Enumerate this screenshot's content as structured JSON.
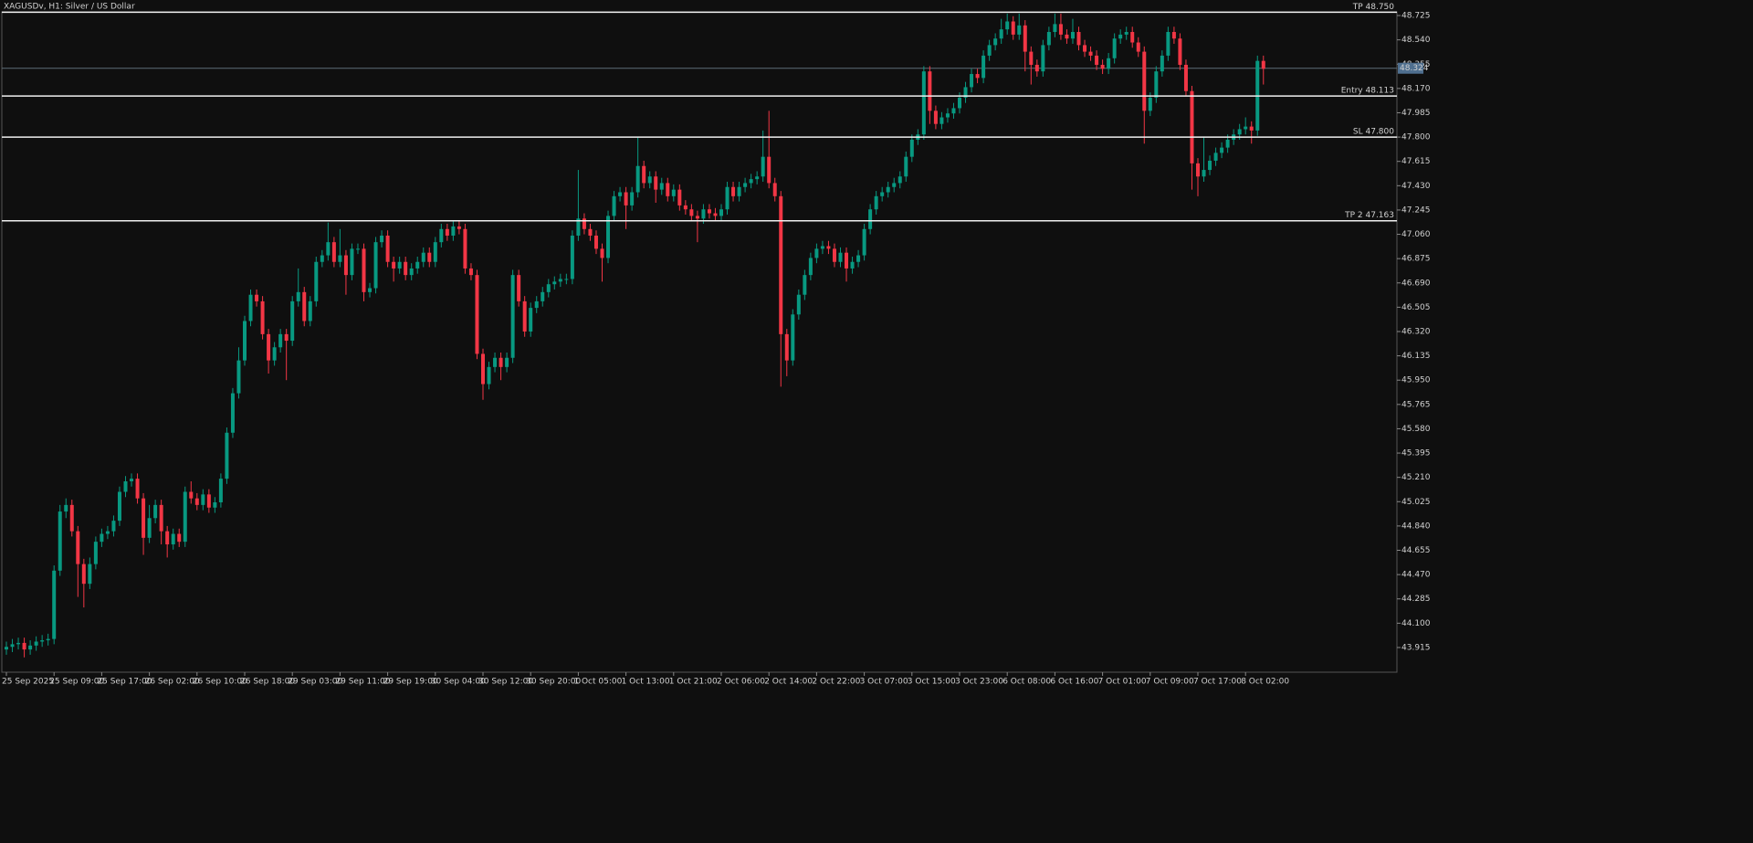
{
  "chart_data": {
    "type": "candlestick",
    "title": "XAGUSDv, H1:  Silver / US Dollar",
    "up_color": "#089981",
    "down_color": "#f23645",
    "ylim": [
      43.727,
      48.753
    ],
    "yticks": [
      48.725,
      {
        "value": 48.54,
        "label": "48.540"
      },
      48.355,
      {
        "value": 48.17,
        "label": "48.170"
      },
      47.985,
      {
        "value": 47.8,
        "label": "47.800"
      },
      47.615,
      {
        "value": 47.43,
        "label": "47.430"
      },
      47.245,
      {
        "value": 47.06,
        "label": "47.060"
      },
      46.875,
      {
        "value": 46.69,
        "label": "46.690"
      },
      46.505,
      {
        "value": 46.32,
        "label": "46.320"
      },
      46.135,
      {
        "value": 45.95,
        "label": "45.950"
      },
      45.765,
      {
        "value": 45.58,
        "label": "45.580"
      },
      45.395,
      {
        "value": 45.21,
        "label": "45.210"
      },
      45.025,
      {
        "value": 44.84,
        "label": "44.840"
      },
      44.655,
      {
        "value": 44.47,
        "label": "44.470"
      },
      44.285,
      {
        "value": 44.1,
        "label": "44.100"
      },
      43.915
    ],
    "levels": [
      {
        "value": 48.75,
        "label": "TP 48.750"
      },
      {
        "value": 48.113,
        "label": "Entry 48.113"
      },
      {
        "value": 47.8,
        "label": "SL 47.800"
      },
      {
        "value": 47.163,
        "label": "TP 2 47.163"
      }
    ],
    "current": {
      "value": 48.324,
      "label": "48.324"
    },
    "categories": [
      "25 Sep 2025",
      null,
      null,
      null,
      null,
      null,
      null,
      null,
      "25 Sep 09:00",
      null,
      null,
      null,
      null,
      null,
      null,
      null,
      "25 Sep 17:00",
      null,
      null,
      null,
      null,
      null,
      null,
      null,
      "26 Sep 02:00",
      null,
      null,
      null,
      null,
      null,
      null,
      null,
      "26 Sep 10:00",
      null,
      null,
      null,
      null,
      null,
      null,
      null,
      "26 Sep 18:00",
      null,
      null,
      null,
      null,
      null,
      null,
      null,
      "29 Sep 03:00",
      null,
      null,
      null,
      null,
      null,
      null,
      null,
      "29 Sep 11:00",
      null,
      null,
      null,
      null,
      null,
      null,
      null,
      "29 Sep 19:00",
      null,
      null,
      null,
      null,
      null,
      null,
      null,
      "30 Sep 04:00",
      null,
      null,
      null,
      null,
      null,
      null,
      null,
      "30 Sep 12:00",
      null,
      null,
      null,
      null,
      null,
      null,
      null,
      "30 Sep 20:00",
      null,
      null,
      null,
      null,
      null,
      null,
      null,
      "1 Oct 05:00",
      null,
      null,
      null,
      null,
      null,
      null,
      null,
      "1 Oct 13:00",
      null,
      null,
      null,
      null,
      null,
      null,
      null,
      "1 Oct 21:00",
      null,
      null,
      null,
      null,
      null,
      null,
      null,
      "2 Oct 06:00",
      null,
      null,
      null,
      null,
      null,
      null,
      null,
      "2 Oct 14:00",
      null,
      null,
      null,
      null,
      null,
      null,
      null,
      "2 Oct 22:00",
      null,
      null,
      null,
      null,
      null,
      null,
      null,
      "3 Oct 07:00",
      null,
      null,
      null,
      null,
      null,
      null,
      null,
      "3 Oct 15:00",
      null,
      null,
      null,
      null,
      null,
      null,
      null,
      "3 Oct 23:00",
      null,
      null,
      null,
      null,
      null,
      null,
      null,
      "6 Oct 08:00",
      null,
      null,
      null,
      null,
      null,
      null,
      null,
      "6 Oct 16:00",
      null,
      null,
      null,
      null,
      null,
      null,
      null,
      "7 Oct 01:00",
      null,
      null,
      null,
      null,
      null,
      null,
      null,
      "7 Oct 09:00",
      null,
      null,
      null,
      null,
      null,
      null,
      null,
      "7 Oct 17:00",
      null,
      null,
      null,
      null,
      null,
      null,
      null,
      "8 Oct 02:00",
      null,
      null,
      null
    ],
    "open": [
      43.9,
      43.92,
      43.94,
      43.95,
      43.9,
      43.93,
      43.96,
      43.97,
      43.98,
      44.5,
      44.95,
      45.0,
      44.8,
      44.55,
      44.4,
      44.55,
      44.72,
      44.78,
      44.8,
      44.88,
      45.1,
      45.18,
      45.2,
      45.05,
      44.75,
      44.9,
      45.0,
      44.8,
      44.7,
      44.78,
      44.72,
      45.1,
      45.05,
      45.0,
      45.08,
      44.98,
      45.02,
      45.2,
      45.55,
      45.85,
      46.1,
      46.4,
      46.6,
      46.55,
      46.3,
      46.1,
      46.2,
      46.3,
      46.25,
      46.55,
      46.62,
      46.4,
      46.55,
      46.85,
      46.9,
      47.0,
      46.85,
      46.9,
      46.75,
      46.95,
      46.95,
      46.62,
      46.65,
      47.0,
      47.05,
      46.85,
      46.8,
      46.85,
      46.75,
      46.8,
      46.85,
      46.92,
      46.85,
      47.0,
      47.1,
      47.05,
      47.12,
      47.1,
      46.8,
      46.75,
      46.15,
      45.92,
      46.05,
      46.12,
      46.05,
      46.12,
      46.75,
      46.55,
      46.32,
      46.5,
      46.55,
      46.62,
      46.68,
      46.7,
      46.72,
      46.72,
      47.05,
      47.18,
      47.1,
      47.05,
      46.95,
      46.88,
      47.2,
      47.35,
      47.38,
      47.28,
      47.38,
      47.58,
      47.45,
      47.5,
      47.4,
      47.45,
      47.35,
      47.4,
      47.28,
      47.25,
      47.2,
      47.18,
      47.25,
      47.22,
      47.2,
      47.25,
      47.42,
      47.35,
      47.42,
      47.45,
      47.48,
      47.5,
      47.65,
      47.45,
      47.35,
      46.3,
      46.1,
      46.45,
      46.6,
      46.75,
      46.88,
      46.95,
      46.97,
      46.95,
      46.85,
      46.92,
      46.8,
      46.85,
      46.9,
      47.1,
      47.25,
      47.35,
      47.38,
      47.42,
      47.45,
      47.5,
      47.65,
      47.78,
      47.82,
      48.3,
      48.0,
      47.9,
      47.95,
      47.98,
      48.02,
      48.1,
      48.18,
      48.28,
      48.25,
      48.42,
      48.5,
      48.55,
      48.62,
      48.68,
      48.58,
      48.65,
      48.45,
      48.35,
      48.3,
      48.5,
      48.6,
      48.66,
      48.58,
      48.55,
      48.6,
      48.5,
      48.45,
      48.42,
      48.35,
      48.32,
      48.4,
      48.55,
      48.58,
      48.6,
      48.52,
      48.45,
      48.0,
      48.1,
      48.3,
      48.42,
      48.6,
      48.55,
      48.35,
      48.15,
      47.6,
      47.5,
      47.55,
      47.62,
      47.68,
      47.72,
      47.78,
      47.82,
      47.86,
      47.88,
      47.85,
      48.38
    ],
    "high": [
      43.96,
      43.98,
      43.99,
      43.99,
      43.97,
      44.0,
      44.01,
      44.02,
      44.54,
      45.0,
      45.05,
      45.04,
      44.84,
      44.59,
      44.6,
      44.76,
      44.82,
      44.84,
      44.92,
      45.14,
      45.22,
      45.24,
      45.24,
      45.09,
      45.0,
      45.04,
      45.04,
      44.84,
      44.82,
      44.82,
      45.14,
      45.18,
      45.09,
      45.12,
      45.12,
      45.06,
      45.24,
      45.59,
      45.89,
      46.2,
      46.44,
      46.64,
      46.64,
      46.59,
      46.34,
      46.24,
      46.34,
      46.34,
      46.59,
      46.8,
      46.66,
      46.59,
      46.89,
      46.94,
      47.15,
      47.04,
      47.1,
      46.94,
      46.99,
      46.99,
      46.99,
      46.69,
      47.04,
      47.09,
      47.09,
      46.89,
      46.89,
      46.89,
      46.84,
      46.89,
      46.96,
      46.96,
      47.04,
      47.14,
      47.14,
      47.16,
      47.16,
      47.14,
      46.84,
      46.79,
      46.19,
      46.09,
      46.16,
      46.16,
      46.16,
      46.79,
      46.79,
      46.59,
      46.54,
      46.59,
      46.66,
      46.72,
      46.74,
      46.76,
      46.76,
      47.09,
      47.55,
      47.22,
      47.14,
      47.09,
      46.99,
      47.24,
      47.39,
      47.42,
      47.42,
      47.42,
      47.8,
      47.62,
      47.54,
      47.54,
      47.49,
      47.49,
      47.44,
      47.44,
      47.32,
      47.29,
      47.24,
      47.29,
      47.29,
      47.26,
      47.29,
      47.46,
      47.46,
      47.46,
      47.49,
      47.52,
      47.54,
      47.85,
      48.0,
      47.49,
      47.39,
      46.34,
      46.49,
      46.64,
      46.79,
      46.92,
      46.99,
      47.01,
      47.01,
      46.99,
      46.96,
      46.96,
      46.89,
      46.94,
      47.14,
      47.29,
      47.39,
      47.42,
      47.46,
      47.49,
      47.54,
      47.69,
      47.82,
      47.86,
      48.34,
      48.34,
      48.04,
      47.99,
      48.02,
      48.06,
      48.14,
      48.22,
      48.32,
      48.32,
      48.46,
      48.54,
      48.59,
      48.7,
      48.74,
      48.72,
      48.74,
      48.69,
      48.49,
      48.39,
      48.54,
      48.64,
      48.74,
      48.74,
      48.62,
      48.7,
      48.64,
      48.54,
      48.49,
      48.46,
      48.39,
      48.44,
      48.59,
      48.62,
      48.64,
      48.64,
      48.56,
      48.49,
      48.14,
      48.34,
      48.46,
      48.64,
      48.64,
      48.59,
      48.39,
      48.19,
      47.64,
      47.8,
      47.66,
      47.72,
      47.76,
      47.82,
      47.86,
      47.9,
      47.95,
      47.92,
      48.42,
      48.42
    ],
    "low": [
      43.86,
      43.88,
      43.9,
      43.84,
      43.86,
      43.89,
      43.92,
      43.93,
      43.94,
      44.46,
      44.9,
      44.76,
      44.3,
      44.22,
      44.36,
      44.51,
      44.68,
      44.74,
      44.76,
      44.84,
      45.06,
      45.14,
      45.01,
      44.62,
      44.71,
      44.86,
      44.7,
      44.6,
      44.66,
      44.68,
      44.68,
      45.01,
      44.96,
      44.96,
      44.94,
      44.94,
      44.98,
      45.16,
      45.51,
      45.81,
      46.06,
      46.36,
      46.51,
      46.26,
      46.0,
      46.06,
      46.16,
      45.95,
      46.21,
      46.51,
      46.36,
      46.36,
      46.51,
      46.81,
      46.86,
      46.81,
      46.81,
      46.6,
      46.71,
      46.91,
      46.55,
      46.58,
      46.61,
      46.96,
      46.81,
      46.7,
      46.76,
      46.71,
      46.71,
      46.76,
      46.81,
      46.81,
      46.81,
      46.96,
      47.01,
      47.01,
      47.06,
      46.76,
      46.71,
      46.11,
      45.8,
      45.88,
      46.01,
      45.95,
      46.01,
      46.08,
      46.51,
      46.28,
      46.28,
      46.46,
      46.51,
      46.58,
      46.64,
      46.66,
      46.68,
      46.68,
      47.01,
      47.06,
      47.01,
      46.91,
      46.7,
      46.84,
      47.16,
      47.31,
      47.1,
      47.24,
      47.34,
      47.41,
      47.41,
      47.3,
      47.36,
      47.31,
      47.31,
      47.24,
      47.21,
      47.16,
      47.0,
      47.14,
      47.18,
      47.16,
      47.16,
      47.21,
      47.31,
      47.31,
      47.38,
      47.41,
      47.44,
      47.46,
      47.41,
      47.31,
      45.9,
      45.98,
      46.06,
      46.41,
      46.56,
      46.71,
      46.84,
      46.91,
      46.91,
      46.81,
      46.81,
      46.7,
      46.76,
      46.81,
      46.86,
      47.06,
      47.21,
      47.31,
      47.34,
      47.38,
      47.41,
      47.46,
      47.61,
      47.74,
      47.78,
      47.9,
      47.86,
      47.86,
      47.91,
      47.94,
      47.98,
      48.06,
      48.14,
      48.21,
      48.21,
      48.38,
      48.46,
      48.51,
      48.58,
      48.54,
      48.54,
      48.3,
      48.2,
      48.26,
      48.26,
      48.46,
      48.56,
      48.54,
      48.51,
      48.51,
      48.46,
      48.41,
      48.38,
      48.31,
      48.28,
      48.28,
      48.36,
      48.51,
      48.54,
      48.48,
      48.41,
      47.75,
      47.96,
      48.06,
      48.26,
      48.38,
      48.51,
      48.31,
      48.11,
      47.4,
      47.35,
      47.46,
      47.51,
      47.58,
      47.64,
      47.68,
      47.74,
      47.78,
      47.82,
      47.75,
      47.81,
      48.2
    ],
    "close": [
      43.92,
      43.94,
      43.95,
      43.9,
      43.93,
      43.96,
      43.97,
      43.98,
      44.5,
      44.95,
      45.0,
      44.8,
      44.55,
      44.4,
      44.55,
      44.72,
      44.78,
      44.8,
      44.88,
      45.1,
      45.18,
      45.2,
      45.05,
      44.75,
      44.9,
      45.0,
      44.8,
      44.7,
      44.78,
      44.72,
      45.1,
      45.05,
      45.0,
      45.08,
      44.98,
      45.02,
      45.2,
      45.55,
      45.85,
      46.1,
      46.4,
      46.6,
      46.55,
      46.3,
      46.1,
      46.2,
      46.3,
      46.25,
      46.55,
      46.62,
      46.4,
      46.55,
      46.85,
      46.9,
      47.0,
      46.85,
      46.9,
      46.75,
      46.95,
      46.95,
      46.62,
      46.65,
      47.0,
      47.05,
      46.85,
      46.8,
      46.85,
      46.75,
      46.8,
      46.85,
      46.92,
      46.85,
      47.0,
      47.1,
      47.05,
      47.12,
      47.1,
      46.8,
      46.75,
      46.15,
      45.92,
      46.05,
      46.12,
      46.05,
      46.12,
      46.75,
      46.55,
      46.32,
      46.5,
      46.55,
      46.62,
      46.68,
      46.7,
      46.72,
      46.72,
      47.05,
      47.18,
      47.1,
      47.05,
      46.95,
      46.88,
      47.2,
      47.35,
      47.38,
      47.28,
      47.38,
      47.58,
      47.45,
      47.5,
      47.4,
      47.45,
      47.35,
      47.4,
      47.28,
      47.25,
      47.2,
      47.18,
      47.25,
      47.22,
      47.2,
      47.25,
      47.42,
      47.35,
      47.42,
      47.45,
      47.48,
      47.5,
      47.65,
      47.45,
      47.35,
      46.3,
      46.1,
      46.45,
      46.6,
      46.75,
      46.88,
      46.95,
      46.97,
      46.95,
      46.85,
      46.92,
      46.8,
      46.85,
      46.9,
      47.1,
      47.25,
      47.35,
      47.38,
      47.42,
      47.45,
      47.5,
      47.65,
      47.78,
      47.82,
      48.3,
      48.0,
      47.9,
      47.95,
      47.98,
      48.02,
      48.1,
      48.18,
      48.28,
      48.25,
      48.42,
      48.5,
      48.55,
      48.62,
      48.68,
      48.58,
      48.65,
      48.45,
      48.35,
      48.3,
      48.5,
      48.6,
      48.66,
      48.58,
      48.55,
      48.6,
      48.5,
      48.45,
      48.42,
      48.35,
      48.32,
      48.4,
      48.55,
      48.58,
      48.6,
      48.52,
      48.45,
      48.0,
      48.1,
      48.3,
      48.42,
      48.6,
      48.55,
      48.35,
      48.15,
      47.6,
      47.5,
      47.55,
      47.62,
      47.68,
      47.72,
      47.78,
      47.82,
      47.86,
      47.88,
      47.85,
      48.38,
      48.32
    ]
  }
}
